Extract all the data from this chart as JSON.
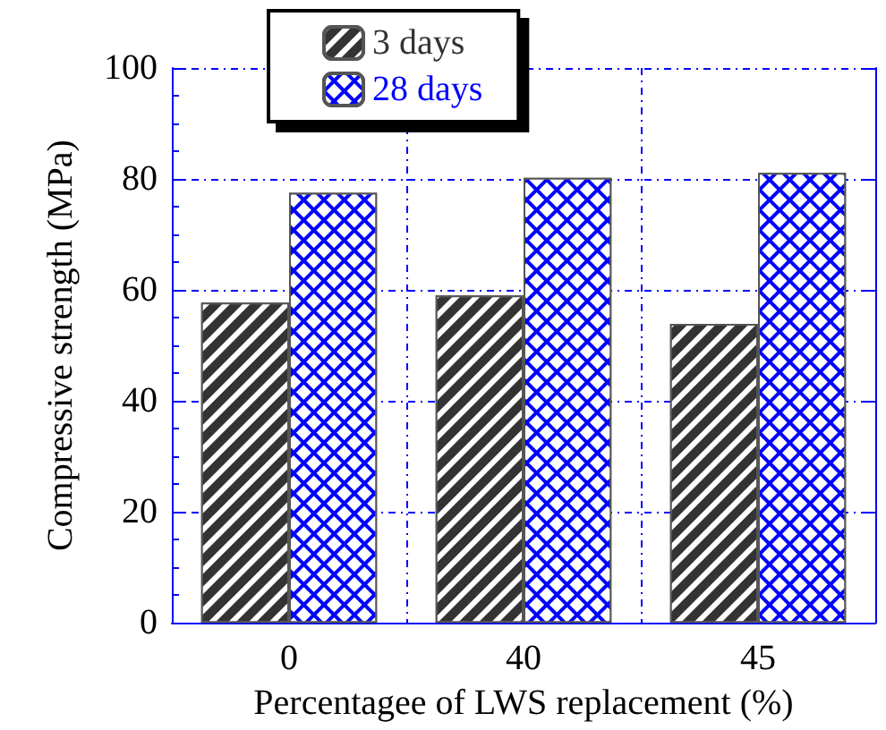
{
  "chart_data": {
    "type": "bar",
    "xlabel": "Percentagee of LWS replacement (%)",
    "ylabel": "Compressive strength (MPa)",
    "categories": [
      "0",
      "40",
      "45"
    ],
    "series": [
      {
        "name": "3 days",
        "color": "#333333",
        "values": [
          57.7,
          59.0,
          53.9
        ]
      },
      {
        "name": "28 days",
        "color": "#0000ff",
        "values": [
          77.5,
          80.2,
          81.1
        ]
      }
    ],
    "ylim": [
      0,
      100
    ],
    "yticks": [
      0,
      20,
      40,
      60,
      80,
      100
    ],
    "grid": true,
    "legend": "top"
  }
}
